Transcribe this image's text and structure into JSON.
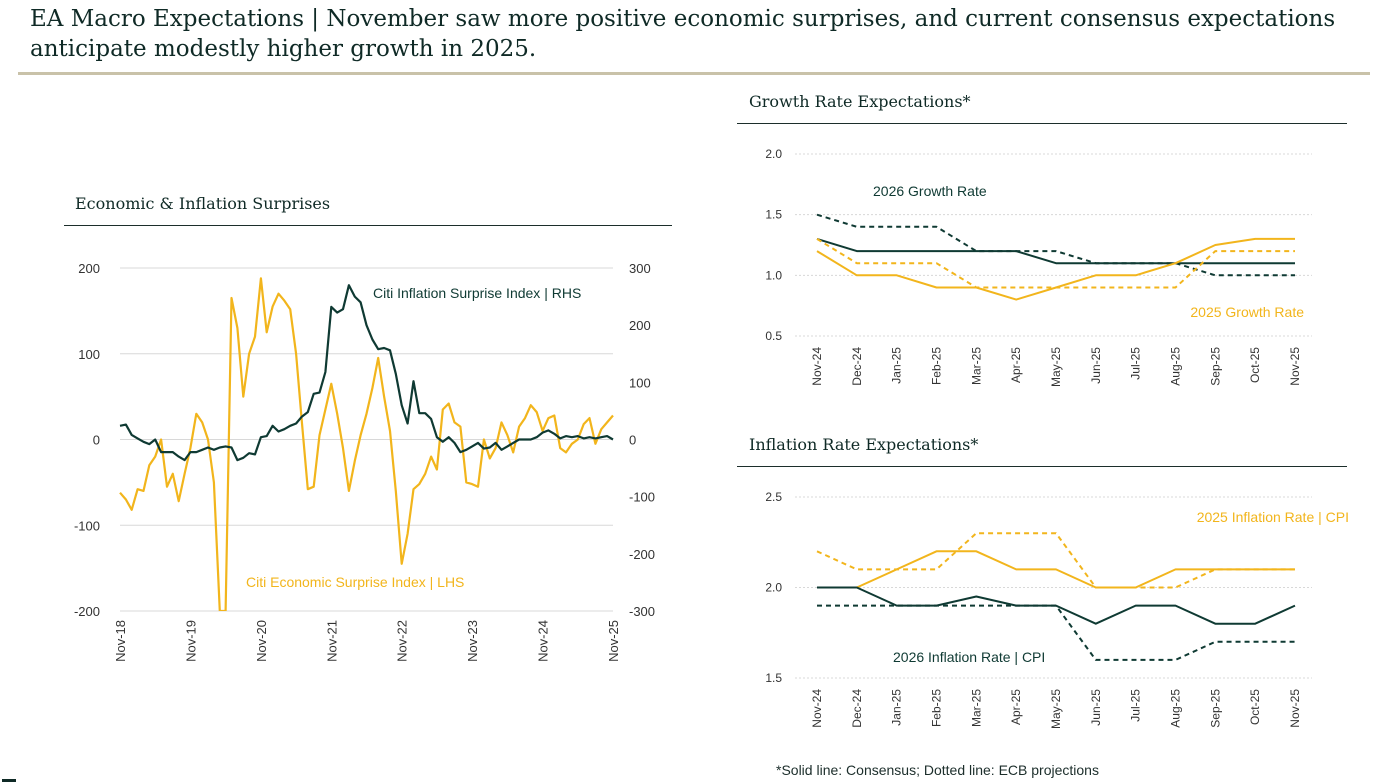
{
  "page": {
    "title": "EA Macro Expectations | November saw more positive economic surprises, and current consensus expectations anticipate modestly higher growth in 2025.",
    "footnote": "*Solid line: Consensus; Dotted line: ECB projections"
  },
  "colors": {
    "dark": "#0f3a33",
    "gold": "#f2b51c",
    "grid": "#d8d8d8",
    "text": "#333333"
  },
  "chart_data": [
    {
      "id": "surprises",
      "type": "line",
      "title": "Economic & Inflation Surprises",
      "x": [
        0,
        1,
        2,
        3,
        4,
        5,
        6,
        7,
        8,
        9,
        10,
        11,
        12,
        13,
        14,
        15,
        16,
        17,
        18,
        19,
        20,
        21,
        22,
        23,
        24,
        25,
        26,
        27,
        28,
        29,
        30,
        31,
        32,
        33,
        34,
        35,
        36,
        37,
        38,
        39,
        40,
        41,
        42,
        43,
        44,
        45,
        46,
        47,
        48,
        49,
        50,
        51,
        52,
        53,
        54,
        55,
        56,
        57,
        58,
        59,
        60,
        61,
        62,
        63,
        64,
        65,
        66,
        67,
        68,
        69,
        70,
        71,
        72,
        73,
        74,
        75,
        76,
        77,
        78,
        79,
        80,
        81,
        82,
        83,
        84
      ],
      "x_ticks": [
        0,
        12,
        24,
        36,
        48,
        60,
        72,
        84
      ],
      "x_tick_labels": [
        "Nov-18",
        "Nov-19",
        "Nov-20",
        "Nov-21",
        "Nov-22",
        "Nov-23",
        "Nov-24",
        "Nov-25"
      ],
      "ylim_left": [
        -200,
        200
      ],
      "y_ticks_left": [
        200,
        100,
        0,
        -100,
        -200
      ],
      "ylim_right": [
        -300,
        300
      ],
      "y_ticks_right": [
        300,
        200,
        100,
        0,
        -100,
        -200,
        -300
      ],
      "series": [
        {
          "name": "Citi Economic Surprise Index | LHS",
          "axis": "left",
          "style": "solid",
          "color": "gold",
          "values": [
            -62,
            -70,
            -82,
            -58,
            -60,
            -30,
            -20,
            0,
            -55,
            -40,
            -72,
            -40,
            -10,
            30,
            20,
            0,
            -50,
            -200,
            -200,
            165,
            130,
            50,
            100,
            120,
            188,
            125,
            155,
            170,
            162,
            152,
            100,
            20,
            -58,
            -55,
            5,
            35,
            65,
            30,
            -10,
            -60,
            -25,
            5,
            30,
            60,
            95,
            50,
            10,
            -60,
            -145,
            -110,
            -58,
            -52,
            -40,
            -20,
            -35,
            35,
            42,
            20,
            15,
            -50,
            -52,
            -55,
            0,
            -22,
            -10,
            20,
            5,
            -15,
            15,
            25,
            40,
            32,
            10,
            25,
            28,
            -10,
            -15,
            -5,
            0,
            18,
            25,
            -5,
            12,
            20,
            28
          ],
          "label_text": "Citi Economic Surprise Index | LHS"
        },
        {
          "name": "Citi Inflation Surprise Index | RHS",
          "axis": "right",
          "style": "solid",
          "color": "dark",
          "values": [
            24,
            26,
            8,
            2,
            -4,
            -8,
            0,
            -22,
            -22,
            -22,
            -30,
            -36,
            -22,
            -22,
            -18,
            -14,
            -18,
            -14,
            -12,
            -14,
            -36,
            -32,
            -24,
            -26,
            4,
            6,
            24,
            14,
            18,
            24,
            28,
            40,
            48,
            80,
            82,
            118,
            232,
            222,
            228,
            270,
            250,
            240,
            200,
            175,
            158,
            160,
            156,
            115,
            60,
            28,
            102,
            46,
            46,
            36,
            4,
            -4,
            4,
            -6,
            -22,
            -18,
            -12,
            -6,
            -16,
            -14,
            -6,
            -18,
            -12,
            -6,
            0,
            0,
            0,
            4,
            12,
            16,
            10,
            2,
            6,
            4,
            6,
            2,
            4,
            2,
            4,
            6,
            0
          ],
          "label_text": "Citi Inflation Surprise Index | RHS"
        }
      ]
    },
    {
      "id": "growth",
      "type": "line",
      "title": "Growth Rate Expectations*",
      "categories": [
        "Nov-24",
        "Dec-24",
        "Jan-25",
        "Feb-25",
        "Mar-25",
        "Apr-25",
        "May-25",
        "Jun-25",
        "Jul-25",
        "Aug-25",
        "Sep-25",
        "Oct-25",
        "Nov-25"
      ],
      "ylim": [
        0.5,
        2.0
      ],
      "y_ticks": [
        2.0,
        1.5,
        1.0,
        0.5
      ],
      "y_tick_labels": [
        "2.0",
        "1.5",
        "1.0",
        "0.5"
      ],
      "series": [
        {
          "name": "2026 Growth Rate consensus",
          "style": "solid",
          "color": "dark",
          "values": [
            1.3,
            1.2,
            1.2,
            1.2,
            1.2,
            1.2,
            1.1,
            1.1,
            1.1,
            1.1,
            1.1,
            1.1,
            1.1
          ]
        },
        {
          "name": "2026 Growth Rate ECB",
          "style": "dotted",
          "color": "dark",
          "values": [
            1.5,
            1.4,
            1.4,
            1.4,
            1.2,
            1.2,
            1.2,
            1.1,
            1.1,
            1.1,
            1.0,
            1.0,
            1.0
          ]
        },
        {
          "name": "2025 Growth Rate consensus",
          "style": "solid",
          "color": "gold",
          "values": [
            1.2,
            1.0,
            1.0,
            0.9,
            0.9,
            0.8,
            0.9,
            1.0,
            1.0,
            1.1,
            1.25,
            1.3,
            1.3
          ]
        },
        {
          "name": "2025 Growth Rate ECB",
          "style": "dotted",
          "color": "gold",
          "values": [
            1.3,
            1.1,
            1.1,
            1.1,
            0.9,
            0.9,
            0.9,
            0.9,
            0.9,
            0.9,
            1.2,
            1.2,
            1.2
          ]
        }
      ],
      "labels": {
        "dark": "2026 Growth Rate",
        "gold": "2025 Growth Rate"
      }
    },
    {
      "id": "inflation",
      "type": "line",
      "title": "Inflation Rate Expectations*",
      "categories": [
        "Nov-24",
        "Dec-24",
        "Jan-25",
        "Feb-25",
        "Mar-25",
        "Apr-25",
        "May-25",
        "Jun-25",
        "Jul-25",
        "Aug-25",
        "Sep-25",
        "Oct-25",
        "Nov-25"
      ],
      "ylim": [
        1.5,
        2.5
      ],
      "y_ticks": [
        2.5,
        2.0,
        1.5
      ],
      "y_tick_labels": [
        "2.5",
        "2.0",
        "1.5"
      ],
      "series": [
        {
          "name": "2025 Inflation Rate | CPI consensus",
          "style": "solid",
          "color": "gold",
          "values": [
            2.0,
            2.0,
            2.1,
            2.2,
            2.2,
            2.1,
            2.1,
            2.0,
            2.0,
            2.1,
            2.1,
            2.1,
            2.1
          ]
        },
        {
          "name": "2025 Inflation Rate | CPI ECB",
          "style": "dotted",
          "color": "gold",
          "values": [
            2.2,
            2.1,
            2.1,
            2.1,
            2.3,
            2.3,
            2.3,
            2.0,
            2.0,
            2.0,
            2.1,
            2.1,
            2.1
          ]
        },
        {
          "name": "2026 Inflation Rate | CPI consensus",
          "style": "solid",
          "color": "dark",
          "values": [
            2.0,
            2.0,
            1.9,
            1.9,
            1.95,
            1.9,
            1.9,
            1.8,
            1.9,
            1.9,
            1.8,
            1.8,
            1.9
          ]
        },
        {
          "name": "2026 Inflation Rate | CPI ECB",
          "style": "dotted",
          "color": "dark",
          "values": [
            1.9,
            1.9,
            1.9,
            1.9,
            1.9,
            1.9,
            1.9,
            1.6,
            1.6,
            1.6,
            1.7,
            1.7,
            1.7
          ]
        }
      ],
      "labels": {
        "gold": "2025 Inflation Rate | CPI",
        "dark": "2026 Inflation Rate | CPI"
      }
    }
  ]
}
